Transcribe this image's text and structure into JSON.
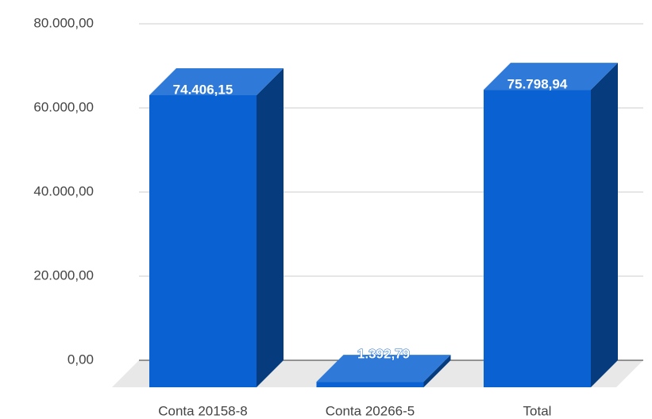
{
  "chart_data": {
    "type": "bar3d",
    "categories": [
      "Conta 20158-8",
      "Conta 20266-5",
      "Total"
    ],
    "values": [
      74406.15,
      1392.79,
      75798.94
    ],
    "value_labels": [
      "74.406,15",
      "1.392,79",
      "75.798,94"
    ],
    "color": "#0a62d2",
    "ylim": [
      0,
      80000
    ],
    "yticks": [
      {
        "value": 0,
        "label": "0,00"
      },
      {
        "value": 20000,
        "label": "20.000,00"
      },
      {
        "value": 40000,
        "label": "40.000,00"
      },
      {
        "value": 60000,
        "label": "60.000,00"
      },
      {
        "value": 80000,
        "label": "80.000,00"
      }
    ],
    "grid": true
  }
}
